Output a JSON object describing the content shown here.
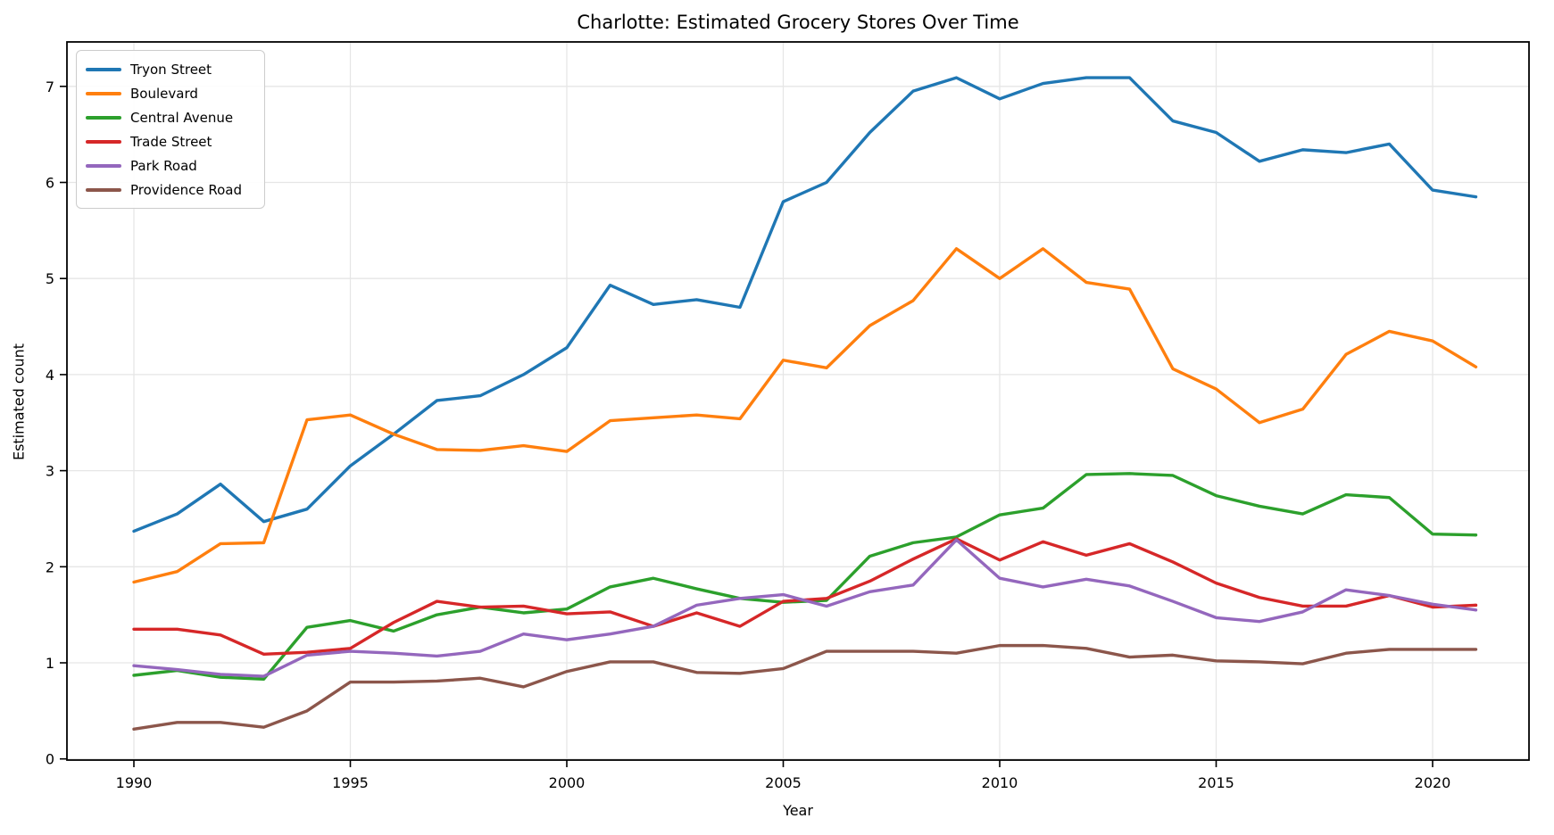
{
  "chart_data": {
    "type": "line",
    "title": "Charlotte: Estimated Grocery Stores Over Time",
    "xlabel": "Year",
    "ylabel": "Estimated count",
    "grid": true,
    "legend_position": "upper left",
    "x_ticks": [
      1990,
      1995,
      2000,
      2005,
      2010,
      2015,
      2020
    ],
    "y_ticks": [
      0,
      1,
      2,
      3,
      4,
      5,
      6,
      7
    ],
    "xlim": [
      1988.45,
      2022.2
    ],
    "ylim": [
      0,
      7.46
    ],
    "x": [
      1990,
      1991,
      1992,
      1993,
      1994,
      1995,
      1996,
      1997,
      1998,
      1999,
      2000,
      2001,
      2002,
      2003,
      2004,
      2005,
      2006,
      2007,
      2008,
      2009,
      2010,
      2011,
      2012,
      2013,
      2014,
      2015,
      2016,
      2017,
      2018,
      2019,
      2020,
      2021
    ],
    "series": [
      {
        "name": "Tryon Street",
        "color": "#1f77b4",
        "values": [
          2.37,
          2.55,
          2.86,
          2.47,
          2.6,
          3.05,
          3.38,
          3.73,
          3.78,
          4.0,
          4.28,
          4.93,
          4.73,
          4.78,
          4.7,
          5.8,
          6.0,
          6.52,
          6.95,
          7.09,
          6.87,
          7.03,
          7.09,
          7.09,
          6.64,
          6.52,
          6.22,
          6.34,
          6.31,
          6.4,
          5.92,
          5.85
        ]
      },
      {
        "name": "Boulevard",
        "color": "#ff7f0e",
        "values": [
          1.84,
          1.95,
          2.24,
          2.25,
          3.53,
          3.58,
          3.38,
          3.22,
          3.21,
          3.26,
          3.2,
          3.52,
          3.55,
          3.58,
          3.54,
          4.15,
          4.07,
          4.51,
          4.77,
          5.31,
          5.0,
          5.31,
          4.96,
          4.89,
          4.06,
          3.85,
          3.5,
          3.64,
          4.21,
          4.45,
          4.35,
          4.08
        ]
      },
      {
        "name": "Central Avenue",
        "color": "#2ca02c",
        "values": [
          0.87,
          0.92,
          0.85,
          0.83,
          1.37,
          1.44,
          1.33,
          1.5,
          1.58,
          1.52,
          1.56,
          1.79,
          1.88,
          1.77,
          1.67,
          1.63,
          1.65,
          2.11,
          2.25,
          2.31,
          2.54,
          2.61,
          2.96,
          2.97,
          2.95,
          2.74,
          2.63,
          2.55,
          2.75,
          2.72,
          2.34,
          2.33
        ]
      },
      {
        "name": "Trade Street",
        "color": "#d62728",
        "values": [
          1.35,
          1.35,
          1.29,
          1.09,
          1.11,
          1.15,
          1.42,
          1.64,
          1.58,
          1.59,
          1.51,
          1.53,
          1.38,
          1.52,
          1.38,
          1.64,
          1.67,
          1.85,
          2.08,
          2.29,
          2.07,
          2.26,
          2.12,
          2.24,
          2.05,
          1.83,
          1.68,
          1.59,
          1.59,
          1.7,
          1.58,
          1.6
        ]
      },
      {
        "name": "Park Road",
        "color": "#9467bd",
        "values": [
          0.97,
          0.93,
          0.88,
          0.86,
          1.08,
          1.12,
          1.1,
          1.07,
          1.12,
          1.3,
          1.24,
          1.3,
          1.38,
          1.6,
          1.67,
          1.71,
          1.59,
          1.74,
          1.81,
          2.28,
          1.88,
          1.79,
          1.87,
          1.8,
          1.64,
          1.47,
          1.43,
          1.53,
          1.76,
          1.7,
          1.61,
          1.55
        ]
      },
      {
        "name": "Providence Road",
        "color": "#8c564b",
        "values": [
          0.31,
          0.38,
          0.38,
          0.33,
          0.5,
          0.8,
          0.8,
          0.81,
          0.84,
          0.75,
          0.91,
          1.01,
          1.01,
          0.9,
          0.89,
          0.94,
          1.12,
          1.12,
          1.12,
          1.1,
          1.18,
          1.18,
          1.15,
          1.06,
          1.08,
          1.02,
          1.01,
          0.99,
          1.1,
          1.14,
          1.14,
          1.14
        ]
      }
    ],
    "style": {
      "grid_color": "#e6e6e6",
      "spine_color": "#000000",
      "tick_label_color": "#000000",
      "line_width": 3.4
    }
  }
}
